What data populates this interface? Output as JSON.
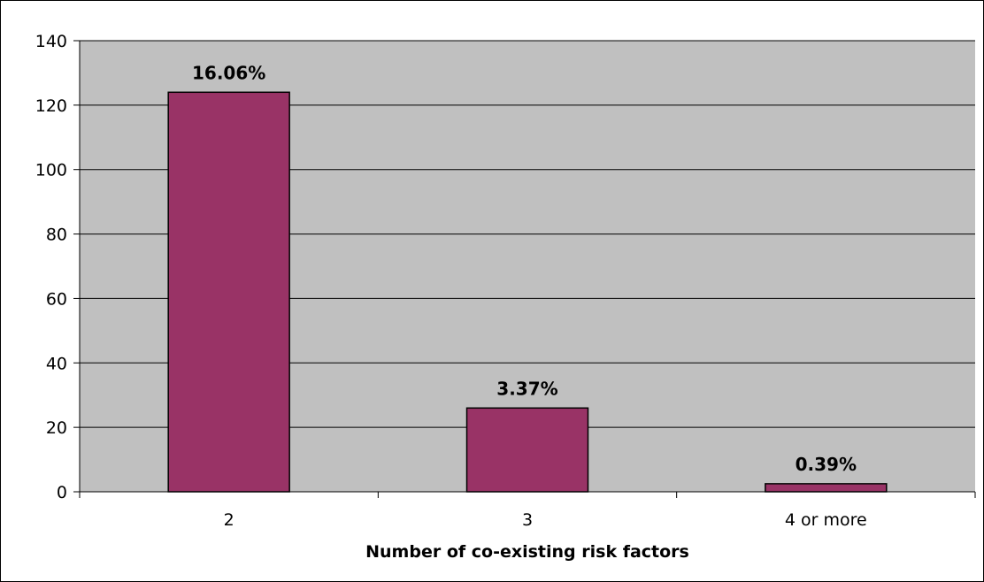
{
  "chart_data": {
    "type": "bar",
    "title": "",
    "xlabel": "Number of co-existing risk factors",
    "ylabel": "",
    "categories": [
      "2",
      "3",
      "4 or more"
    ],
    "values": [
      124,
      26,
      2.5
    ],
    "data_labels": [
      "16.06%",
      "3.37%",
      "0.39%"
    ],
    "ylim": [
      0,
      140
    ],
    "yticks": [
      "0",
      "20",
      "40",
      "60",
      "80",
      "100",
      "120",
      "140"
    ],
    "grid": true,
    "legend": "none",
    "colors": {
      "bar": "#993366",
      "plot_background": "#c0c0c0",
      "gridline": "#000000"
    }
  }
}
